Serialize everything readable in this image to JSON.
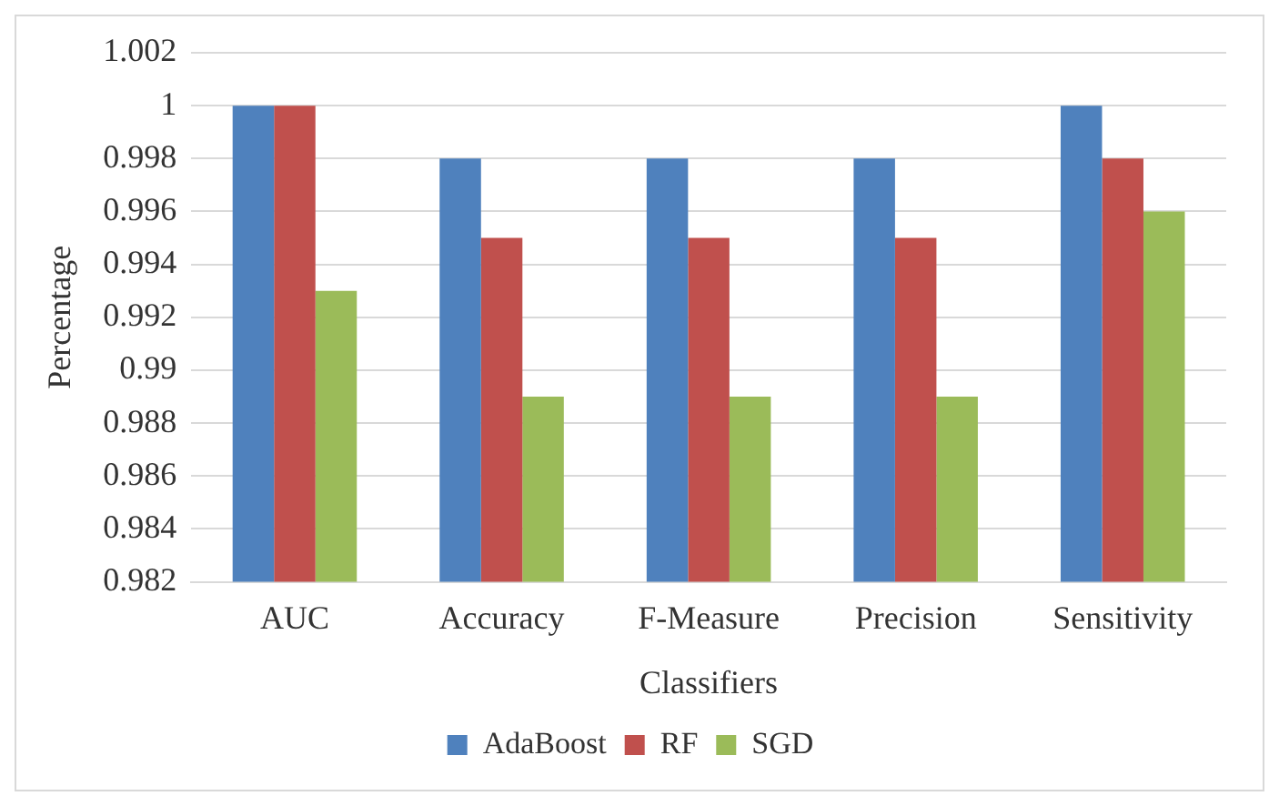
{
  "chart_data": {
    "type": "bar",
    "xlabel": "Classifiers",
    "ylabel": "Percentage",
    "categories": [
      "AUC",
      "Accuracy",
      "F-Measure",
      "Precision",
      "Sensitivity"
    ],
    "series": [
      {
        "name": "AdaBoost",
        "color": "#4f81bd",
        "values": [
          1,
          0.998,
          0.998,
          0.998,
          1
        ]
      },
      {
        "name": "RF",
        "color": "#c0504d",
        "values": [
          1,
          0.995,
          0.995,
          0.995,
          0.998
        ]
      },
      {
        "name": "SGD",
        "color": "#9bbb59",
        "values": [
          0.993,
          0.989,
          0.989,
          0.989,
          0.996
        ]
      }
    ],
    "ylim": [
      0.982,
      1.002
    ],
    "yticks": [
      0.982,
      0.984,
      0.986,
      0.988,
      0.99,
      0.992,
      0.994,
      0.996,
      0.998,
      1,
      1.002
    ],
    "grid": "y",
    "legend": "bottom"
  }
}
